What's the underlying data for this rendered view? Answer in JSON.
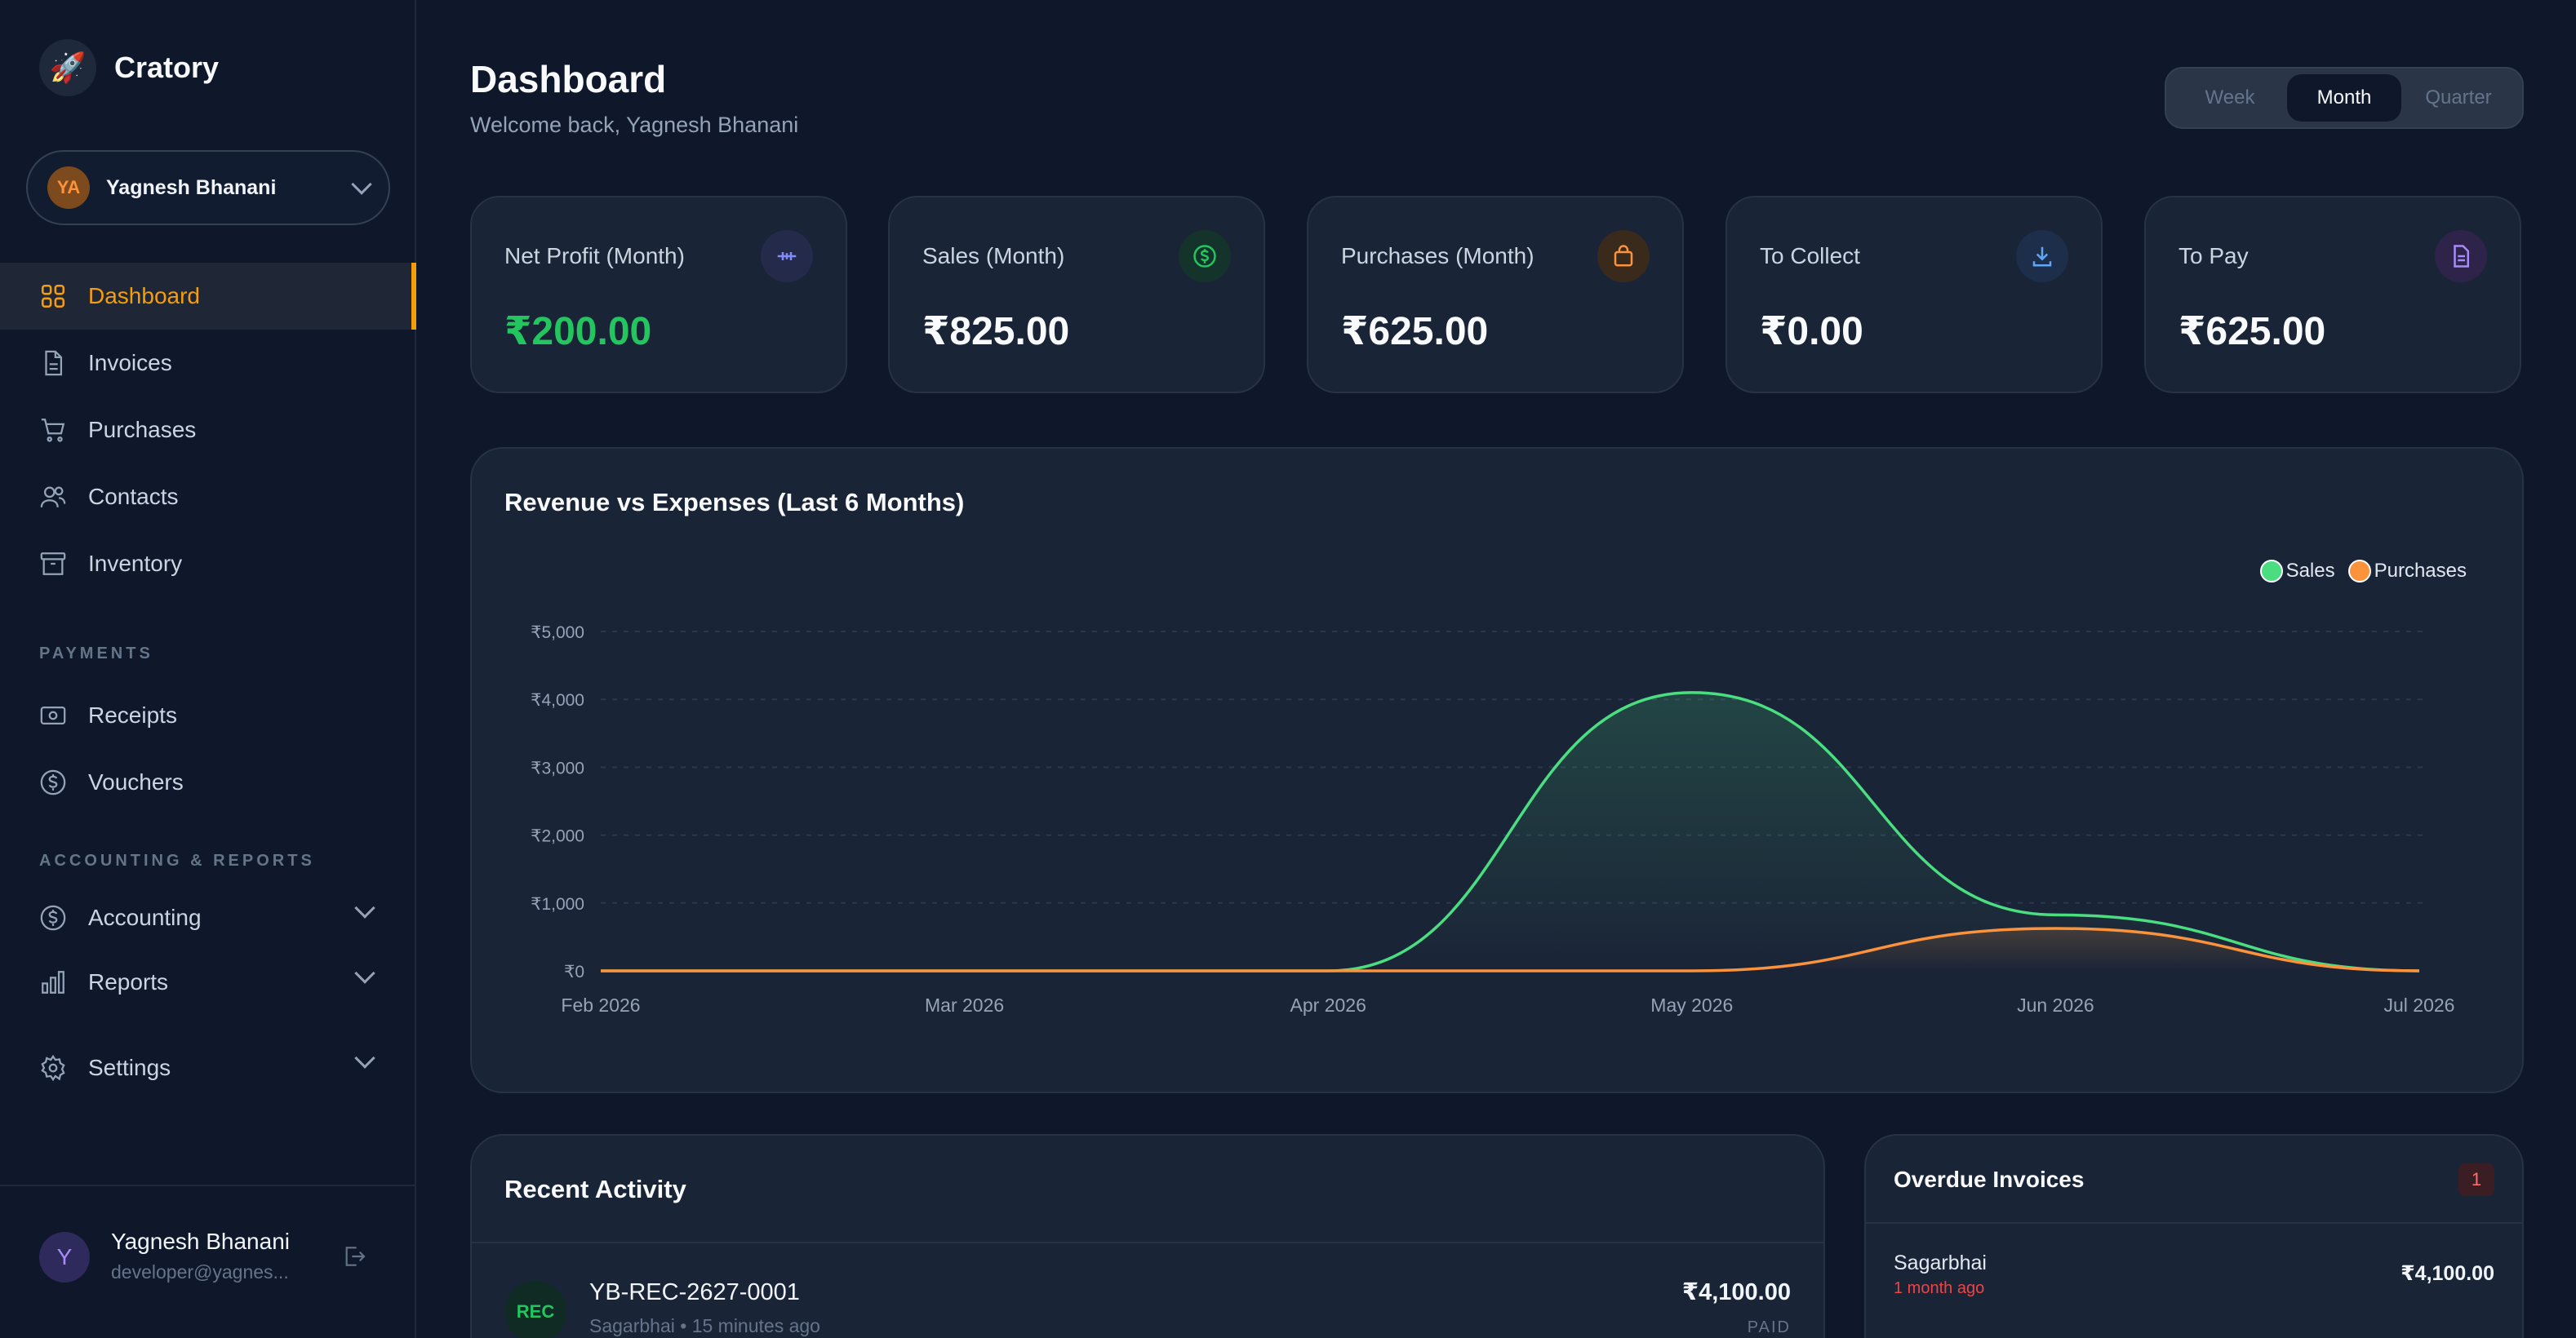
{
  "brand": {
    "name": "Cratory",
    "logo_icon": "rocket-icon"
  },
  "user_switcher": {
    "initials": "YA",
    "name": "Yagnesh Bhanani"
  },
  "nav": {
    "main": [
      {
        "label": "Dashboard",
        "icon": "grid-icon",
        "active": true
      },
      {
        "label": "Invoices",
        "icon": "file-icon"
      },
      {
        "label": "Purchases",
        "icon": "cart-icon"
      },
      {
        "label": "Contacts",
        "icon": "users-icon"
      },
      {
        "label": "Inventory",
        "icon": "archive-icon"
      }
    ],
    "payments_label": "PAYMENTS",
    "payments": [
      {
        "label": "Receipts",
        "icon": "banknote-icon"
      },
      {
        "label": "Vouchers",
        "icon": "dollar-circle-icon"
      }
    ],
    "accounting_label": "ACCOUNTING & REPORTS",
    "accounting": [
      {
        "label": "Accounting",
        "icon": "dollar-circle-icon"
      },
      {
        "label": "Reports",
        "icon": "bar-chart-icon"
      }
    ],
    "settings": {
      "label": "Settings",
      "icon": "gear-icon"
    }
  },
  "footer_user": {
    "initial": "Y",
    "name": "Yagnesh Bhanani",
    "email": "developer@yagnes..."
  },
  "header": {
    "title": "Dashboard",
    "subtitle": "Welcome back, Yagnesh Bhanani"
  },
  "range_tabs": {
    "week": "Week",
    "month": "Month",
    "quarter": "Quarter",
    "selected": "Month"
  },
  "kpis": [
    {
      "label": "Net Profit (Month)",
      "value": "₹200.00",
      "color": "#22c55e",
      "icon": "scale-icon"
    },
    {
      "label": "Sales (Month)",
      "value": "₹825.00",
      "color": "#f8fafc",
      "icon": "dollar-circle-icon"
    },
    {
      "label": "Purchases (Month)",
      "value": "₹625.00",
      "color": "#f8fafc",
      "icon": "bag-icon"
    },
    {
      "label": "To Collect",
      "value": "₹0.00",
      "color": "#f8fafc",
      "icon": "download-icon"
    },
    {
      "label": "To Pay",
      "value": "₹625.00",
      "color": "#f8fafc",
      "icon": "document-icon"
    }
  ],
  "chart_data": {
    "type": "area",
    "title": "Revenue vs Expenses (Last 6 Months)",
    "categories": [
      "Feb 2026",
      "Mar 2026",
      "Apr 2026",
      "May 2026",
      "Jun 2026",
      "Jul 2026"
    ],
    "series": [
      {
        "name": "Sales",
        "values": [
          0,
          0,
          0,
          4100,
          825,
          0
        ],
        "color": "#4ade80"
      },
      {
        "name": "Purchases",
        "values": [
          0,
          0,
          0,
          0,
          625,
          0
        ],
        "color": "#fb923c"
      }
    ],
    "yticks": [
      "₹0",
      "₹1,000",
      "₹2,000",
      "₹3,000",
      "₹4,000",
      "₹5,000"
    ],
    "ylim": [
      0,
      5000
    ],
    "legend": "top-right",
    "grid": true
  },
  "recent_activity": {
    "title": "Recent Activity",
    "items": [
      {
        "badge": "REC",
        "id": "YB-REC-2627-0001",
        "meta": "Sagarbhai • 15 minutes ago",
        "amount": "₹4,100.00",
        "status": "PAID"
      }
    ]
  },
  "overdue": {
    "title": "Overdue Invoices",
    "count": "1",
    "items": [
      {
        "name": "Sagarbhai",
        "ago": "1 month ago",
        "amount": "₹4,100.00"
      }
    ]
  }
}
